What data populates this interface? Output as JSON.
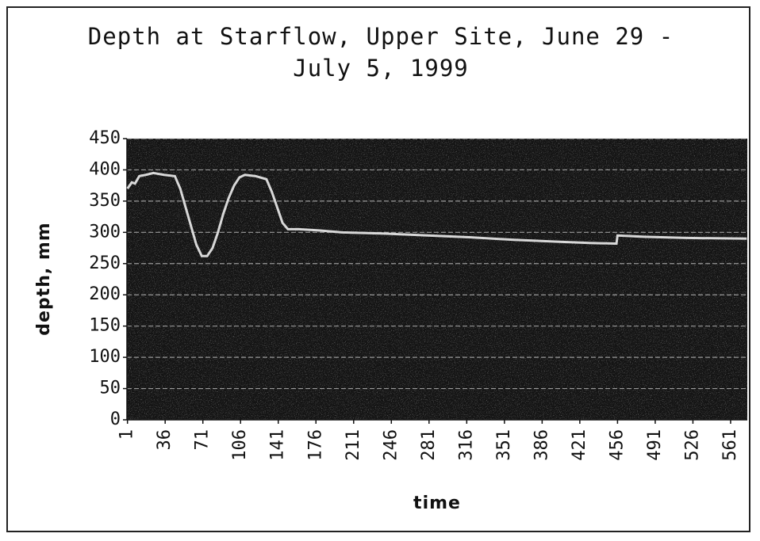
{
  "chart_data": {
    "type": "line",
    "title": "Depth at Starflow, Upper Site, June 29 - July 5, 1999",
    "x_label": "time",
    "y_label": "depth, mm",
    "xlim": [
      0.5,
      576.5
    ],
    "ylim": [
      0,
      450
    ],
    "xticks": [
      1,
      36,
      71,
      106,
      141,
      176,
      211,
      246,
      281,
      316,
      351,
      386,
      421,
      456,
      491,
      526,
      561
    ],
    "yticks": [
      0,
      50,
      100,
      150,
      200,
      250,
      300,
      350,
      400,
      450
    ],
    "grid": true,
    "series": [
      {
        "color": "#d8d8d8",
        "x": [
          1,
          5,
          8,
          12,
          18,
          25,
          35,
          45,
          50,
          55,
          60,
          65,
          70,
          75,
          80,
          85,
          90,
          95,
          100,
          105,
          110,
          120,
          130,
          135,
          140,
          145,
          150,
          160,
          180,
          200,
          240,
          280,
          320,
          360,
          400,
          430,
          455,
          456,
          480,
          520,
          576
        ],
        "values": [
          370,
          380,
          378,
          390,
          392,
          395,
          392,
          390,
          370,
          340,
          310,
          280,
          262,
          262,
          275,
          300,
          330,
          355,
          375,
          388,
          392,
          390,
          385,
          365,
          340,
          315,
          305,
          305,
          303,
          300,
          298,
          295,
          292,
          288,
          285,
          283,
          282,
          295,
          293,
          291,
          290
        ]
      }
    ]
  }
}
